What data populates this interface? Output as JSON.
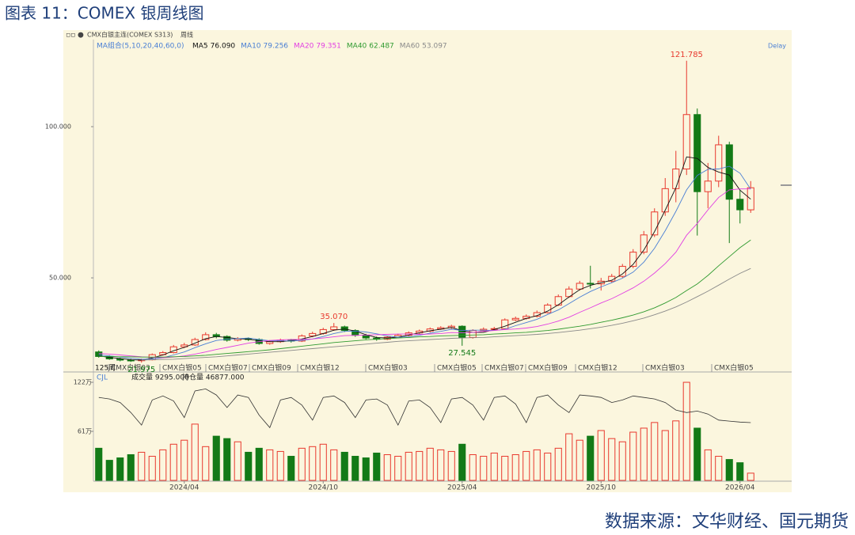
{
  "title": "图表 11：COMEX 银周线图",
  "source": "数据来源：文华财经、国元期货",
  "chart_data": {
    "type": "candlestick",
    "header": "CMX白银主连(COMEX S313)",
    "period": "周线",
    "delay": "Delay",
    "ma_label": "MA组合(5,10,20,40,60,0)",
    "count_label": "125周",
    "categories": [
      null,
      null,
      null,
      null,
      null,
      null,
      null,
      null,
      "2024/04",
      null,
      null,
      null,
      null,
      null,
      null,
      null,
      null,
      null,
      null,
      null,
      null,
      "2024/10",
      null,
      null,
      null,
      null,
      null,
      null,
      null,
      null,
      null,
      null,
      null,
      null,
      "2025/04",
      null,
      null,
      null,
      null,
      null,
      null,
      null,
      null,
      null,
      null,
      null,
      null,
      "2025/10",
      null,
      null,
      null,
      null,
      null,
      null,
      null,
      null,
      null,
      null,
      null,
      null,
      "2026/04",
      null
    ],
    "open": [
      25.5,
      24.0,
      23.2,
      22.8,
      22.6,
      22.9,
      24.6,
      25.3,
      27.2,
      27.8,
      29.6,
      31.2,
      30.6,
      29.4,
      29.9,
      29.6,
      28.3,
      28.9,
      29.4,
      29.1,
      30.8,
      31.6,
      32.9,
      33.8,
      32.6,
      31.0,
      30.1,
      29.7,
      30.4,
      31.0,
      31.8,
      32.4,
      33.1,
      33.5,
      34.0,
      30.3,
      32.6,
      33.0,
      33.2,
      36.1,
      36.6,
      37.3,
      38.5,
      41.0,
      43.8,
      46.3,
      48.2,
      48.0,
      48.9,
      50.5,
      53.8,
      58.5,
      64.2,
      71.8,
      79.5,
      86.0,
      104.0,
      78.5,
      82.0,
      94.0,
      76.0,
      72.5
    ],
    "high": [
      26.0,
      24.4,
      23.6,
      23.2,
      23.3,
      25.0,
      25.8,
      27.8,
      28.5,
      30.2,
      32.0,
      31.8,
      31.0,
      30.4,
      30.3,
      30.0,
      29.4,
      29.9,
      29.8,
      31.3,
      32.2,
      33.5,
      35.07,
      34.2,
      33.0,
      31.5,
      30.6,
      30.8,
      31.5,
      32.3,
      32.9,
      33.6,
      34.0,
      34.5,
      34.3,
      33.0,
      33.6,
      33.8,
      36.6,
      37.2,
      37.9,
      39.2,
      41.6,
      44.5,
      47.2,
      49.0,
      54.0,
      50.0,
      51.3,
      54.6,
      59.5,
      65.5,
      73.0,
      83.0,
      92.0,
      121.785,
      106.0,
      88.0,
      97.0,
      95.0,
      79.0,
      82.0
    ],
    "low": [
      23.6,
      22.9,
      22.4,
      22.2,
      21.975,
      22.7,
      24.3,
      25.0,
      26.8,
      27.5,
      29.3,
      30.0,
      28.9,
      29.0,
      29.1,
      27.9,
      27.9,
      28.5,
      28.6,
      28.8,
      30.4,
      31.2,
      32.5,
      32.1,
      30.5,
      29.7,
      29.2,
      29.4,
      30.0,
      30.7,
      31.4,
      32.0,
      32.8,
      33.1,
      27.545,
      29.9,
      32.2,
      32.6,
      33.0,
      35.7,
      36.2,
      36.9,
      38.2,
      40.7,
      43.4,
      45.8,
      46.5,
      45.8,
      48.3,
      50.0,
      53.2,
      57.8,
      63.5,
      70.5,
      75.0,
      84.0,
      64.0,
      73.0,
      80.0,
      61.5,
      68.0,
      71.5
    ],
    "close": [
      24.0,
      23.2,
      22.8,
      22.6,
      22.9,
      24.6,
      25.3,
      27.2,
      27.8,
      29.6,
      31.2,
      30.6,
      29.4,
      29.9,
      29.6,
      28.3,
      28.9,
      29.4,
      29.1,
      30.8,
      31.6,
      32.9,
      33.8,
      32.6,
      31.0,
      30.1,
      29.7,
      30.4,
      31.0,
      31.8,
      32.4,
      33.1,
      33.5,
      34.0,
      30.3,
      32.6,
      33.0,
      33.2,
      36.1,
      36.6,
      37.3,
      38.5,
      41.0,
      43.8,
      46.3,
      48.2,
      48.0,
      48.9,
      50.5,
      53.8,
      58.5,
      64.2,
      71.8,
      79.5,
      86.0,
      104.0,
      78.5,
      82.0,
      94.0,
      76.0,
      72.5,
      79.8
    ],
    "high_labels": [
      null,
      null,
      null,
      null,
      null,
      null,
      null,
      null,
      null,
      null,
      null,
      null,
      null,
      null,
      null,
      null,
      null,
      null,
      null,
      null,
      null,
      null,
      "35.070",
      null,
      null,
      null,
      null,
      null,
      null,
      null,
      null,
      null,
      null,
      null,
      null,
      null,
      null,
      null,
      null,
      null,
      null,
      null,
      null,
      null,
      null,
      null,
      null,
      null,
      null,
      null,
      null,
      null,
      null,
      null,
      null,
      "121.785",
      null,
      null,
      null,
      null,
      null,
      null
    ],
    "low_labels": [
      null,
      null,
      null,
      null,
      "21.975",
      null,
      null,
      null,
      null,
      null,
      null,
      null,
      null,
      null,
      null,
      null,
      null,
      null,
      null,
      null,
      null,
      null,
      null,
      null,
      null,
      null,
      null,
      null,
      null,
      null,
      null,
      null,
      null,
      null,
      "27.545",
      null,
      null,
      null,
      null,
      null,
      null,
      null,
      null,
      null,
      null,
      null,
      null,
      null,
      null,
      null,
      null,
      null,
      null,
      null,
      null,
      null,
      null,
      null,
      null,
      null,
      null,
      null
    ],
    "up_color": "#e8392e",
    "down_color": "#137a17",
    "ylim": [
      19.4,
      128.8
    ],
    "yticks": [
      {
        "value": 50,
        "label": "50.000"
      },
      {
        "value": 100,
        "label": "100.000"
      }
    ],
    "series": [
      {
        "name": "MA5",
        "value_label": "76.090",
        "color": "#111111",
        "values": [
          24.2,
          23.7,
          23.3,
          22.9,
          22.8,
          23.5,
          24.5,
          25.9,
          27.0,
          28.4,
          29.9,
          30.6,
          30.3,
          29.9,
          29.7,
          29.2,
          28.9,
          28.9,
          29.2,
          29.8,
          30.6,
          31.6,
          32.7,
          33.1,
          32.4,
          31.2,
          30.3,
          30.1,
          30.4,
          31.1,
          31.8,
          32.5,
          33.0,
          33.6,
          32.5,
          32.0,
          32.0,
          32.9,
          34.0,
          35.3,
          36.6,
          37.5,
          39.0,
          41.1,
          43.7,
          46.1,
          47.5,
          48.4,
          49.2,
          51.3,
          54.5,
          59.2,
          65.3,
          72.4,
          79.8,
          90.0,
          89.5,
          86.5,
          85.0,
          84.0,
          79.0,
          76.0
        ]
      },
      {
        "name": "MA10",
        "value_label": "79.256",
        "color": "#4a7fd4",
        "values": [
          24.5,
          24.2,
          23.8,
          23.4,
          23.1,
          23.2,
          23.6,
          24.5,
          25.5,
          26.9,
          28.2,
          29.3,
          29.7,
          29.9,
          30.1,
          29.6,
          29.2,
          29.2,
          29.1,
          29.3,
          29.8,
          30.6,
          31.6,
          32.3,
          32.4,
          32.1,
          31.5,
          30.8,
          30.4,
          30.5,
          31.0,
          31.7,
          32.3,
          33.0,
          32.6,
          32.7,
          32.7,
          32.6,
          33.0,
          34.2,
          35.2,
          36.3,
          37.9,
          39.4,
          41.5,
          43.6,
          45.5,
          47.0,
          48.4,
          49.9,
          51.9,
          55.2,
          59.8,
          65.6,
          72.0,
          79.1,
          83.9,
          85.9,
          86.0,
          86.9,
          84.6,
          79.3
        ]
      },
      {
        "name": "MA20",
        "value_label": "79.351",
        "color": "#e23ee2",
        "values": [
          25.0,
          24.8,
          24.5,
          24.2,
          23.9,
          23.7,
          23.6,
          23.8,
          24.2,
          24.8,
          25.5,
          26.3,
          27.0,
          27.7,
          28.4,
          28.9,
          29.3,
          29.5,
          29.6,
          29.6,
          29.8,
          30.1,
          30.5,
          30.9,
          31.0,
          31.1,
          31.2,
          31.3,
          31.4,
          31.4,
          31.3,
          31.4,
          31.6,
          31.9,
          31.8,
          32.0,
          32.3,
          32.6,
          32.9,
          33.1,
          33.4,
          33.9,
          34.7,
          35.7,
          37.0,
          38.6,
          40.1,
          41.7,
          43.1,
          44.9,
          46.7,
          48.9,
          51.6,
          54.7,
          58.5,
          64.1,
          68.0,
          72.5,
          76.6,
          79.1,
          79.4,
          79.4
        ]
      },
      {
        "name": "MA40",
        "value_label": "62.487",
        "color": "#2f9a2f",
        "values": [
          24.0,
          24.0,
          23.9,
          23.9,
          23.8,
          23.8,
          23.8,
          23.9,
          24.0,
          24.2,
          24.4,
          24.7,
          25.0,
          25.3,
          25.6,
          25.9,
          26.2,
          26.6,
          27.0,
          27.4,
          27.8,
          28.2,
          28.6,
          28.9,
          29.2,
          29.5,
          29.7,
          29.9,
          30.1,
          30.3,
          30.5,
          30.6,
          30.8,
          30.9,
          31.0,
          31.1,
          31.2,
          31.4,
          31.6,
          31.8,
          32.0,
          32.3,
          32.6,
          33.0,
          33.5,
          34.0,
          34.6,
          35.3,
          36.0,
          36.8,
          37.7,
          38.8,
          40.1,
          41.7,
          43.5,
          45.8,
          48.0,
          50.8,
          54.0,
          57.0,
          60.0,
          62.5
        ]
      },
      {
        "name": "MA60",
        "value_label": "53.097",
        "color": "#8a8a8a",
        "values": [
          null,
          null,
          null,
          null,
          22.8,
          22.9,
          23.0,
          23.1,
          23.3,
          23.5,
          23.7,
          23.9,
          24.2,
          24.5,
          24.8,
          25.1,
          25.4,
          25.7,
          26.0,
          26.3,
          26.6,
          26.9,
          27.2,
          27.5,
          27.8,
          28.1,
          28.4,
          28.7,
          29.0,
          29.2,
          29.4,
          29.6,
          29.8,
          30.0,
          30.1,
          30.2,
          30.3,
          30.5,
          30.7,
          30.9,
          31.1,
          31.3,
          31.6,
          31.9,
          32.3,
          32.7,
          33.2,
          33.7,
          34.3,
          35.0,
          35.8,
          36.7,
          37.8,
          39.0,
          40.4,
          42.0,
          43.8,
          45.6,
          47.6,
          49.6,
          51.5,
          53.1
        ]
      }
    ],
    "contract_labels": [
      "CMX白银03",
      "CMX白银05",
      "CMX白银07",
      "CMX白银09",
      "CMX白银12",
      "CMX白银03",
      "CMX白银05",
      "CMX白银07",
      "CMX白银09",
      "CMX白银12",
      "CMX白银03",
      "CMX白银05"
    ],
    "volume": {
      "indicator": "CJL",
      "volume_label": "成交量 9295.000",
      "oi_label": "持仓量 46877.000",
      "values": [
        40,
        25,
        28,
        32,
        35,
        30,
        38,
        45,
        50,
        70,
        42,
        55,
        52,
        48,
        35,
        40,
        38,
        36,
        30,
        40,
        42,
        45,
        38,
        35,
        30,
        28,
        34,
        32,
        30,
        35,
        36,
        40,
        38,
        36,
        45,
        32,
        30,
        34,
        30,
        32,
        36,
        38,
        34,
        40,
        58,
        50,
        55,
        62,
        52,
        48,
        60,
        65,
        72,
        62,
        74,
        122,
        65,
        38,
        30,
        26,
        22,
        9
      ],
      "ylim": [
        0,
        125
      ],
      "yticks": [
        {
          "value": 61,
          "label": "61万"
        },
        {
          "value": 122,
          "label": "122万"
        }
      ],
      "open_interest": [
        16.5,
        16.2,
        15.5,
        13.5,
        11,
        16,
        16.8,
        15.8,
        12.5,
        17.8,
        18.2,
        17,
        14.5,
        17,
        16.5,
        13,
        10.5,
        16,
        16.5,
        15,
        12,
        16.5,
        16.8,
        15.5,
        12.5,
        16,
        16.2,
        15,
        11,
        15.8,
        16,
        14.5,
        11.5,
        16.2,
        16.5,
        15,
        12,
        16.5,
        16.8,
        15.2,
        11.5,
        16.5,
        17,
        15,
        13.5,
        17,
        16.8,
        16.5,
        15.5,
        16,
        16.8,
        16.5,
        16.2,
        15.5,
        14,
        13.5,
        13.8,
        13.2,
        12,
        11.8,
        11.6,
        11.5
      ],
      "y2lim": [
        0,
        20
      ],
      "oi_color": "#333333"
    }
  }
}
